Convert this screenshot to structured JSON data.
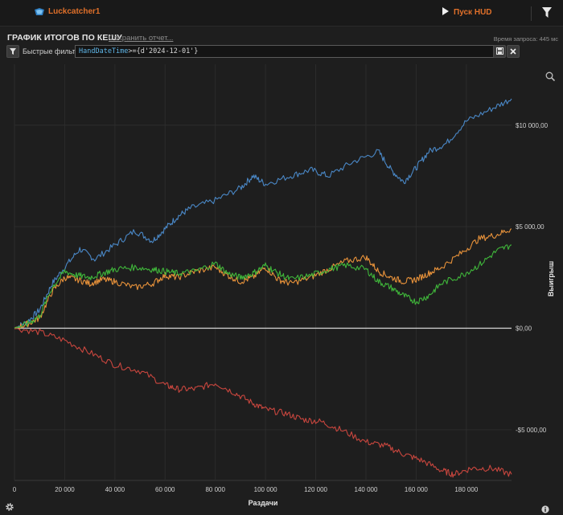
{
  "header": {
    "username": "Luckcatcher1",
    "hud_label": "Пуск HUD",
    "icons": [
      "poker-logo-icon",
      "play-icon",
      "filter-icon"
    ]
  },
  "report": {
    "title": "ГРАФИК ИТОГОВ ПО КЕШУ",
    "save_label": "Сохранить отчет...",
    "query_time": "Время запроса: 445 мс"
  },
  "filters": {
    "quick_label": "Быстрые фильтры",
    "field": "HandDateTime",
    "expression": ">={d'2024-12-01'}"
  },
  "colors": {
    "background": "#1e1e1e",
    "accent": "#e0702a",
    "blue": "#4a88c7",
    "orange": "#e8923a",
    "green": "#3fb53a",
    "red": "#c9463e"
  },
  "chart_data": {
    "type": "line",
    "xlabel": "Раздачи",
    "ylabel": "Выигрыш",
    "xlim": [
      0,
      198000
    ],
    "ylim": [
      -7500,
      13000
    ],
    "x_ticks": [
      0,
      20000,
      40000,
      60000,
      80000,
      100000,
      120000,
      140000,
      160000,
      180000
    ],
    "x_tick_labels": [
      "0",
      "20 000",
      "40 000",
      "60 000",
      "80 000",
      "100 000",
      "120 000",
      "140 000",
      "160 000",
      "180 000"
    ],
    "y_ticks": [
      10000,
      5000,
      0,
      -5000
    ],
    "y_tick_labels": [
      "$10 000,00",
      "$5 000,00",
      "$0,00",
      "-$5 000,00"
    ],
    "grid": true,
    "series": [
      {
        "name": "blue",
        "color": "#4a88c7",
        "x": [
          0,
          5000,
          10000,
          15000,
          20000,
          26000,
          32000,
          40000,
          48000,
          55000,
          60000,
          65000,
          70000,
          80000,
          90000,
          95000,
          100000,
          110000,
          118000,
          125000,
          135000,
          145000,
          150000,
          155000,
          160000,
          165000,
          172000,
          180000,
          190000,
          198000
        ],
        "y": [
          0,
          300,
          900,
          2200,
          3000,
          3900,
          3400,
          4100,
          4800,
          4300,
          4900,
          5500,
          5900,
          6300,
          6900,
          7500,
          7100,
          7500,
          7800,
          7500,
          8200,
          8700,
          7800,
          7200,
          7900,
          8700,
          9100,
          10200,
          10800,
          11300
        ]
      },
      {
        "name": "orange",
        "color": "#e8923a",
        "x": [
          0,
          5000,
          10000,
          15000,
          20000,
          25000,
          30000,
          35000,
          40000,
          48000,
          55000,
          60000,
          65000,
          72000,
          80000,
          85000,
          90000,
          95000,
          100000,
          105000,
          110000,
          118000,
          125000,
          132000,
          140000,
          145000,
          150000,
          155000,
          160000,
          165000,
          170000,
          178000,
          185000,
          192000,
          198000
        ],
        "y": [
          0,
          200,
          500,
          1800,
          2500,
          2400,
          2200,
          2400,
          2300,
          2000,
          2200,
          2600,
          2500,
          2800,
          3000,
          2600,
          2300,
          2500,
          3000,
          2400,
          2200,
          2500,
          2900,
          3300,
          3500,
          2800,
          2500,
          2300,
          2400,
          2700,
          3000,
          3700,
          4400,
          4600,
          4900
        ]
      },
      {
        "name": "green",
        "color": "#3fb53a",
        "x": [
          0,
          5000,
          10000,
          15000,
          20000,
          25000,
          30000,
          35000,
          40000,
          48000,
          55000,
          60000,
          65000,
          72000,
          80000,
          85000,
          90000,
          95000,
          100000,
          105000,
          110000,
          118000,
          125000,
          132000,
          140000,
          145000,
          150000,
          155000,
          160000,
          165000,
          170000,
          178000,
          185000,
          192000,
          198000
        ],
        "y": [
          0,
          200,
          600,
          2000,
          2800,
          2600,
          2500,
          2700,
          2900,
          3000,
          2900,
          2800,
          2700,
          2800,
          3200,
          2700,
          2500,
          2700,
          3100,
          2700,
          2400,
          2600,
          2900,
          3100,
          2900,
          2300,
          2000,
          1600,
          1300,
          1600,
          2200,
          2600,
          3100,
          3800,
          4100
        ]
      },
      {
        "name": "red",
        "color": "#c9463e",
        "x": [
          0,
          10000,
          20000,
          30000,
          40000,
          50000,
          60000,
          65000,
          72000,
          80000,
          88000,
          95000,
          100000,
          108000,
          115000,
          122000,
          130000,
          140000,
          148000,
          155000,
          162000,
          170000,
          175000,
          182000,
          190000,
          198000
        ],
        "y": [
          0,
          -200,
          -600,
          -1200,
          -1800,
          -2100,
          -2800,
          -3000,
          -3000,
          -2700,
          -3200,
          -3700,
          -4000,
          -4200,
          -4500,
          -4600,
          -5000,
          -5600,
          -5800,
          -6200,
          -6500,
          -7000,
          -7200,
          -6900,
          -6900,
          -7200
        ]
      }
    ]
  }
}
